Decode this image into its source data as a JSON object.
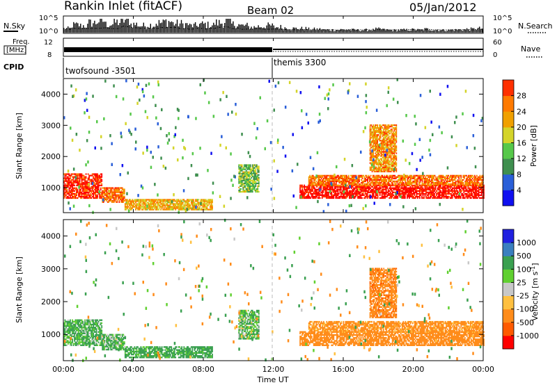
{
  "header": {
    "station": "Rankin Inlet (fitACF)",
    "beam": "Beam 02",
    "date": "05/Jan/2012"
  },
  "noise_panel": {
    "left_label": "N.Sky",
    "right_label": "N.Search",
    "left_ticks": [
      "10^5",
      "10^0"
    ],
    "right_ticks": [
      "10^5",
      "10^0"
    ],
    "sky_level_profile": [
      0.3,
      0.55,
      0.5,
      0.7,
      0.85,
      0.6,
      0.75,
      0.9,
      0.6,
      0.5,
      0.55,
      0.7,
      0.8,
      0.65,
      0.6,
      0.5,
      0.6,
      0.55,
      0.7,
      0.85,
      0.6,
      0.5,
      0.4,
      0.45,
      0.5,
      0.4,
      0.35,
      0.3,
      0.3,
      0.25,
      0.25,
      0.2,
      0.2,
      0.22,
      0.2,
      0.18,
      0.2,
      0.25,
      0.2,
      0.18,
      0.2,
      0.22,
      0.2,
      0.25,
      0.2,
      0.18,
      0.2,
      0.22,
      0.25,
      0.3
    ]
  },
  "freq_panel": {
    "left_label_1": "Freq.",
    "left_label_2": "[MHz]",
    "right_label": "Nave",
    "left_ticks": [
      "12",
      "8"
    ],
    "right_ticks": [
      "60",
      "0"
    ]
  },
  "cpid_panel": {
    "label": "CPID",
    "modes": [
      {
        "name": "twofsound",
        "id": "-3501",
        "start_hour": 0,
        "end_hour": 12
      },
      {
        "name": "themis",
        "id": "3300",
        "start_hour": 12,
        "end_hour": 24
      }
    ],
    "mode_texts": [
      "twofsound  -3501",
      "themis 3300"
    ]
  },
  "power_panel": {
    "ylabel": "Slant Range [km]",
    "cbar_label": "Power [dB]",
    "cbar_ticks": [
      "4",
      "8",
      "12",
      "16",
      "20",
      "24",
      "28"
    ]
  },
  "velocity_panel": {
    "ylabel": "Slant Range [km]",
    "cbar_label": "Velocity [m s",
    "cbar_label_sup": "-1",
    "cbar_label_end": "]",
    "cbar_ticks": [
      "-1000",
      "-500",
      "-100",
      "-25",
      "25",
      "100",
      "500",
      "1000"
    ]
  },
  "xaxis": {
    "label": "Time UT",
    "ticks": [
      "00:00",
      "04:00",
      "08:00",
      "12:00",
      "16:00",
      "20:00",
      "00:00"
    ]
  },
  "chart_data": [
    {
      "type": "heatmap",
      "title": "Power [dB]",
      "xlabel": "Time UT",
      "ylabel": "Slant Range [km]",
      "xlim_hours": [
        0,
        24
      ],
      "ylim_km": [
        200,
        4500
      ],
      "yticks_km": [
        1000,
        2000,
        3000,
        4000
      ],
      "colorbar_range_db": [
        0,
        30
      ],
      "colorbar_ticks": [
        4,
        8,
        12,
        16,
        20,
        24,
        28
      ],
      "colors": [
        "#1010f0",
        "#2a5fd8",
        "#3f8f4f",
        "#56c84a",
        "#d4d42a",
        "#f0a000",
        "#ff7a00",
        "#ff3000",
        "#ff0000"
      ],
      "echo_regions": [
        {
          "t": [
            0.0,
            2.2
          ],
          "r": [
            650,
            1450
          ],
          "power_db": 26
        },
        {
          "t": [
            2.2,
            3.5
          ],
          "r": [
            520,
            980
          ],
          "power_db": 22
        },
        {
          "t": [
            3.5,
            8.5
          ],
          "r": [
            280,
            620
          ],
          "power_db": 18
        },
        {
          "t": [
            10.0,
            11.2
          ],
          "r": [
            850,
            1750
          ],
          "power_db": 12
        },
        {
          "t": [
            13.5,
            24.0
          ],
          "r": [
            650,
            1100
          ],
          "power_db": 28
        },
        {
          "t": [
            14.0,
            24.0
          ],
          "r": [
            1050,
            1400
          ],
          "power_db": 22
        },
        {
          "t": [
            17.5,
            19.0
          ],
          "r": [
            1500,
            3000
          ],
          "power_db": 20
        }
      ]
    },
    {
      "type": "heatmap",
      "title": "Velocity [m s-1]",
      "xlabel": "Time UT",
      "ylabel": "Slant Range [km]",
      "xlim_hours": [
        0,
        24
      ],
      "ylim_km": [
        200,
        4500
      ],
      "yticks_km": [
        1000,
        2000,
        3000,
        4000
      ],
      "colorbar_ticks": [
        -1000,
        -500,
        -100,
        -25,
        25,
        100,
        500,
        1000
      ],
      "colors": [
        "#ff0000",
        "#ff5a00",
        "#ff8c1a",
        "#ffc040",
        "#c8c8c8",
        "#60d030",
        "#3aa050",
        "#3a7fbf",
        "#2020e0"
      ],
      "echo_regions": [
        {
          "t": [
            0.0,
            2.2
          ],
          "r": [
            650,
            1450
          ],
          "velocity_ms": 150
        },
        {
          "t": [
            2.2,
            3.5
          ],
          "r": [
            520,
            980
          ],
          "velocity_ms": 120
        },
        {
          "t": [
            3.5,
            8.5
          ],
          "r": [
            280,
            620
          ],
          "velocity_ms": 200
        },
        {
          "t": [
            10.0,
            11.2
          ],
          "r": [
            850,
            1750
          ],
          "velocity_ms": 100
        },
        {
          "t": [
            13.5,
            24.0
          ],
          "r": [
            650,
            1100
          ],
          "velocity_ms": -300
        },
        {
          "t": [
            14.0,
            24.0
          ],
          "r": [
            1050,
            1400
          ],
          "velocity_ms": -200
        },
        {
          "t": [
            17.5,
            19.0
          ],
          "r": [
            1500,
            3000
          ],
          "velocity_ms": -400
        }
      ]
    }
  ]
}
